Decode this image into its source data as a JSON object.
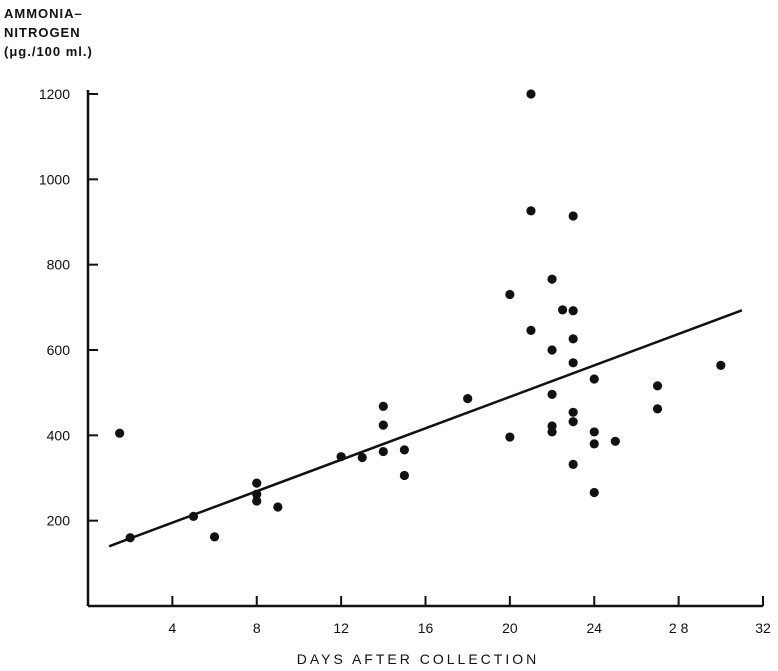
{
  "chart_data": {
    "type": "scatter",
    "ylabel_lines": [
      "AMMONIA–",
      "NITROGEN",
      "(μg./100 ml.)"
    ],
    "xlabel": "DAYS  AFTER  COLLECTION",
    "xlim": [
      0,
      32
    ],
    "ylim": [
      0,
      1200
    ],
    "x_ticks": [
      4,
      8,
      12,
      16,
      20,
      24,
      28,
      32
    ],
    "x_tick_labels": [
      "4",
      "8",
      "12",
      "16",
      "20",
      "24",
      "2 8",
      "32"
    ],
    "y_ticks": [
      200,
      400,
      600,
      800,
      1000,
      1200
    ],
    "y_tick_labels": [
      "200",
      "400",
      "600",
      "800",
      "1000",
      "1200"
    ],
    "grid": false,
    "points": [
      [
        1.5,
        405
      ],
      [
        2,
        160
      ],
      [
        5,
        210
      ],
      [
        6,
        162
      ],
      [
        8,
        288
      ],
      [
        8,
        262
      ],
      [
        8,
        246
      ],
      [
        9,
        232
      ],
      [
        12,
        350
      ],
      [
        13,
        348
      ],
      [
        14,
        468
      ],
      [
        14,
        424
      ],
      [
        14,
        362
      ],
      [
        15,
        366
      ],
      [
        15,
        306
      ],
      [
        18,
        486
      ],
      [
        20,
        730
      ],
      [
        20,
        396
      ],
      [
        21,
        1200
      ],
      [
        21,
        926
      ],
      [
        21,
        646
      ],
      [
        22,
        766
      ],
      [
        22,
        600
      ],
      [
        22,
        496
      ],
      [
        22,
        422
      ],
      [
        22,
        408
      ],
      [
        22.5,
        694
      ],
      [
        23,
        914
      ],
      [
        23,
        692
      ],
      [
        23,
        626
      ],
      [
        23,
        570
      ],
      [
        23,
        454
      ],
      [
        23,
        432
      ],
      [
        23,
        332
      ],
      [
        24,
        532
      ],
      [
        24,
        408
      ],
      [
        24,
        380
      ],
      [
        24,
        266
      ],
      [
        25,
        386
      ],
      [
        27,
        516
      ],
      [
        27,
        462
      ],
      [
        30,
        564
      ]
    ],
    "trend_line": {
      "x": [
        1,
        31
      ],
      "y": [
        140,
        693
      ]
    }
  }
}
